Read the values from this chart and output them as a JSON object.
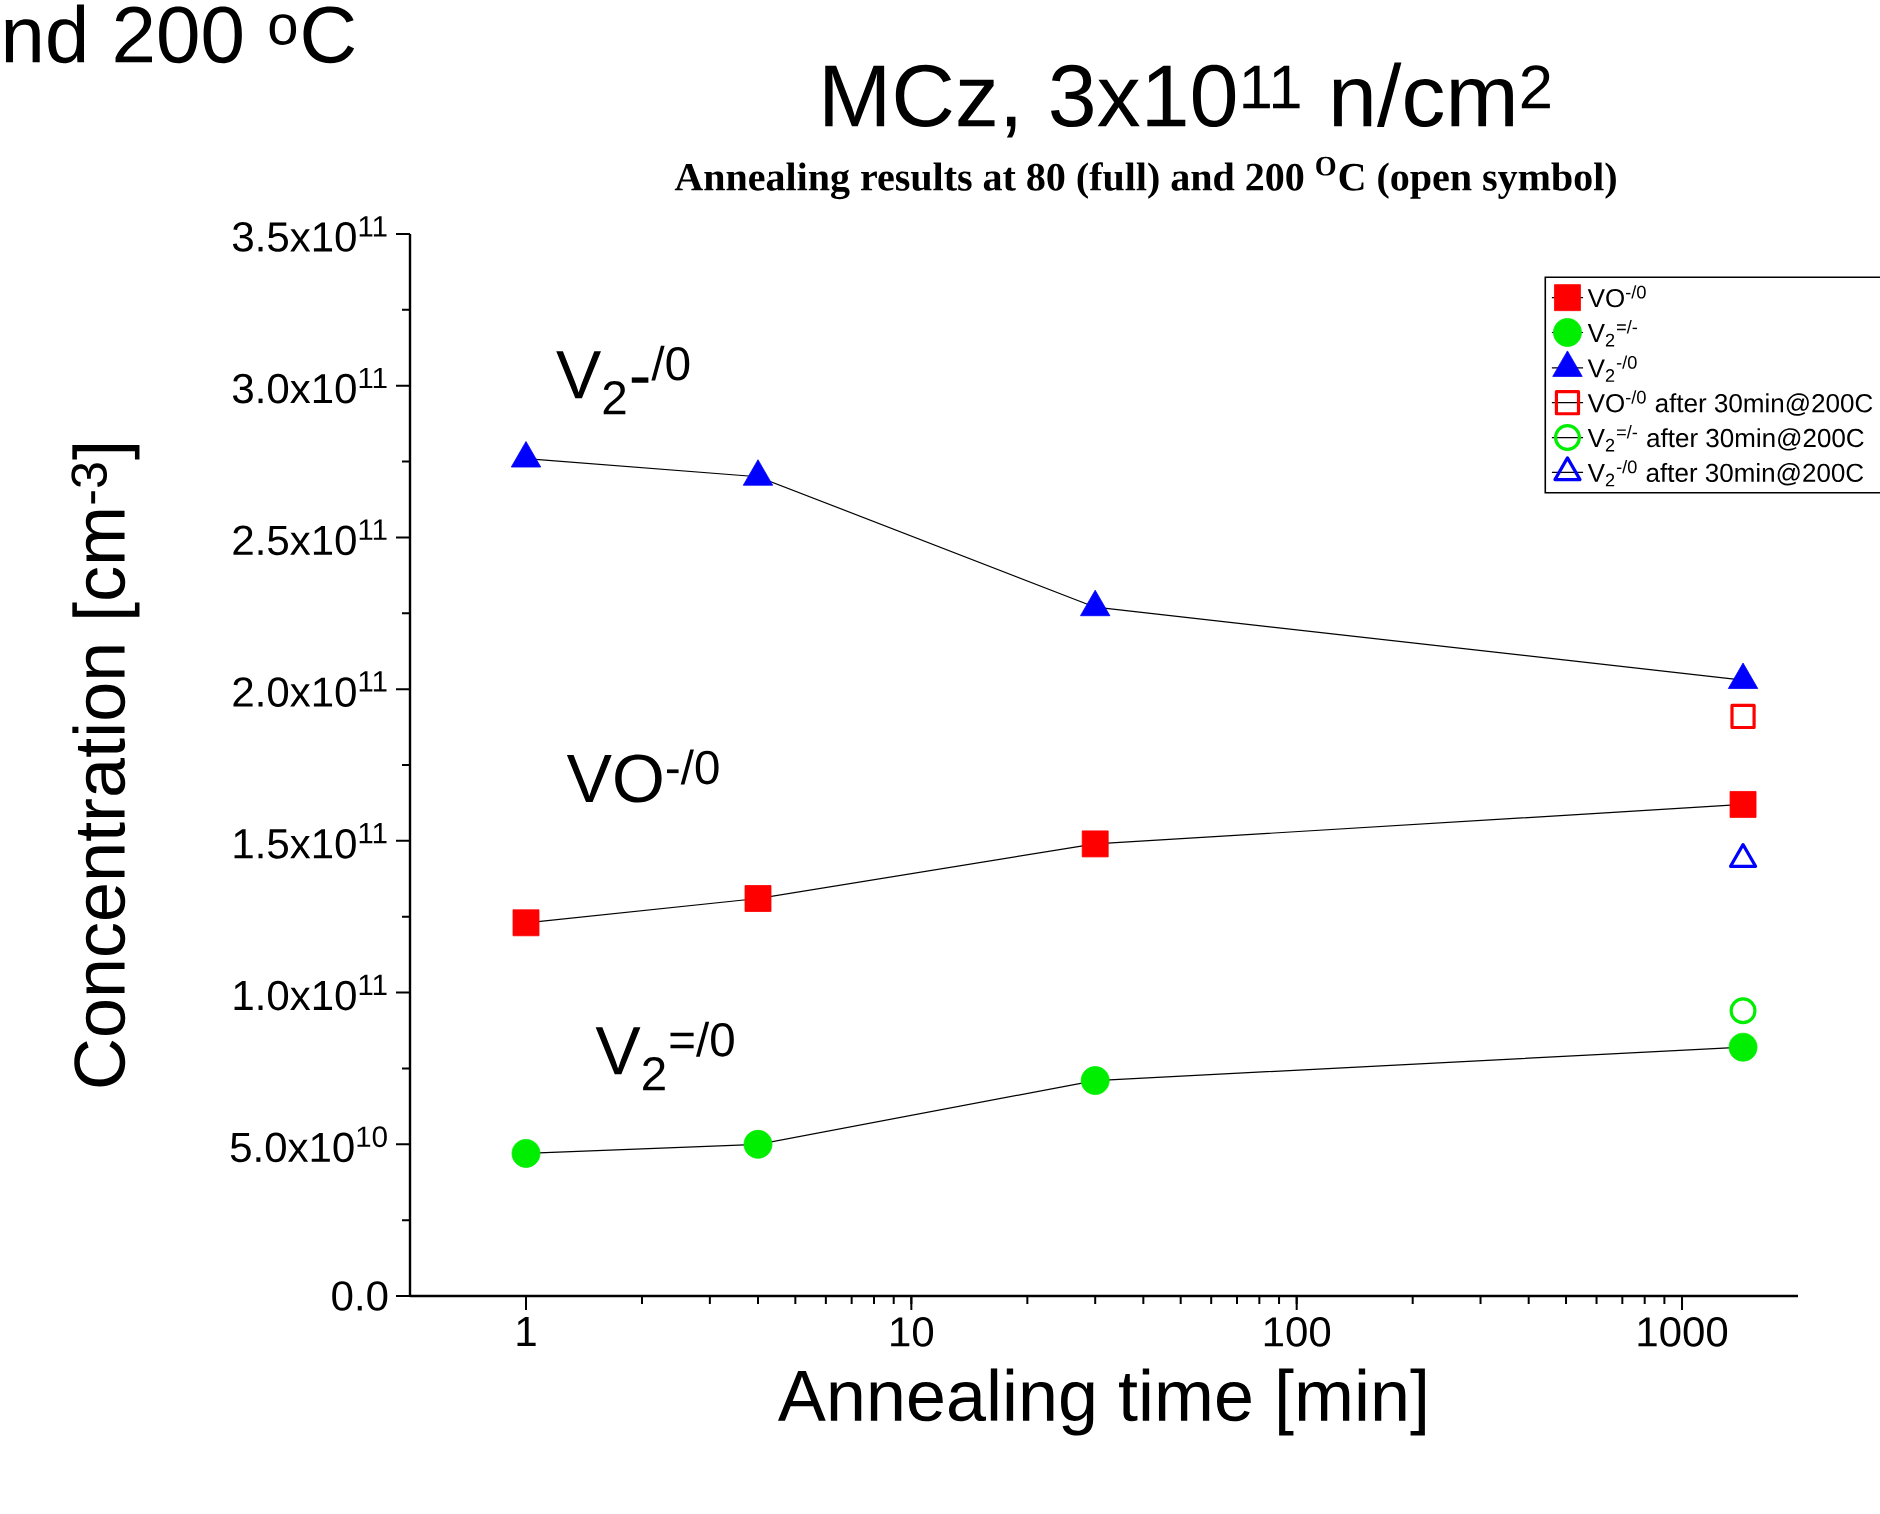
{
  "chart_data": {
    "type": "line",
    "title": "MCz, 3x10$^{11}$ n/cm$^{2}$",
    "subtitle": "Annealing results at 80 (full) and 200 $^{O}$C (open symbol)",
    "xlabel": "Annealing time [min]",
    "ylabel": "Concentration [cm$^{-3}$]",
    "log": "x",
    "xlim": [
      0.5,
      2000
    ],
    "xticks": [
      1,
      10,
      100,
      1000
    ],
    "ylim": [
      0,
      350000000000.0
    ],
    "yticks": [
      {
        "value": 0,
        "label": "0.0"
      },
      {
        "value": 50000000000.0,
        "label": "5.0x10$^{10}$"
      },
      {
        "value": 100000000000.0,
        "label": "1.0x10$^{11}$"
      },
      {
        "value": 150000000000.0,
        "label": "1.5x10$^{11}$"
      },
      {
        "value": 200000000000.0,
        "label": "2.0x10$^{11}$"
      },
      {
        "value": 250000000000.0,
        "label": "2.5x10$^{11}$"
      },
      {
        "value": 300000000000.0,
        "label": "3.0x10$^{11}$"
      },
      {
        "value": 350000000000.0,
        "label": "3.5x10$^{11}$"
      }
    ],
    "legend": "top right",
    "line_style": "solid",
    "series": [
      {
        "name": "VO$^{-/0}$",
        "color": "#ff0000",
        "marker": "square",
        "x": [
          1,
          4,
          30,
          1440
        ],
        "values": [
          123000000000.0,
          131000000000.0,
          149000000000.0,
          162000000000.0
        ]
      },
      {
        "name": "V$_{2}$$^{=/-}$",
        "color": "#00ee00",
        "marker": "circle",
        "x": [
          1,
          4,
          30,
          1440
        ],
        "values": [
          47000000000.0,
          50000000000.0,
          71000000000.0,
          82000000000.0
        ]
      },
      {
        "name": "V$_{2}$$^{-/0}$",
        "color": "#0000ff",
        "marker": "triangle",
        "x": [
          1,
          4,
          30,
          1440
        ],
        "values": [
          276000000000.0,
          270000000000.0,
          227000000000.0,
          203000000000.0
        ]
      },
      {
        "name": "VO$^{-/0}$ after 30min@200C",
        "color": "#ff0000",
        "type": "scatter",
        "marker": "square",
        "x": [
          1440
        ],
        "values": [
          191000000000.0
        ]
      },
      {
        "name": "V$_{2}$$^{=/-}$ after 30min@200C",
        "color": "#00ee00",
        "type": "scatter",
        "marker": "circle",
        "x": [
          1440
        ],
        "values": [
          94000000000.0
        ]
      },
      {
        "name": "V$_{2}$$^{-/0}$ after 30min@200C",
        "color": "#0000ff",
        "type": "scatter",
        "marker": "triangle",
        "x": [
          1440
        ],
        "values": [
          144000000000.0
        ]
      }
    ],
    "annotations": [
      "V$_{2}$-$^{/0}$",
      "VO$^{-/0}$",
      "V$_{2}$$^{=/0}$",
      "nd 200 $^{o}$C"
    ]
  }
}
